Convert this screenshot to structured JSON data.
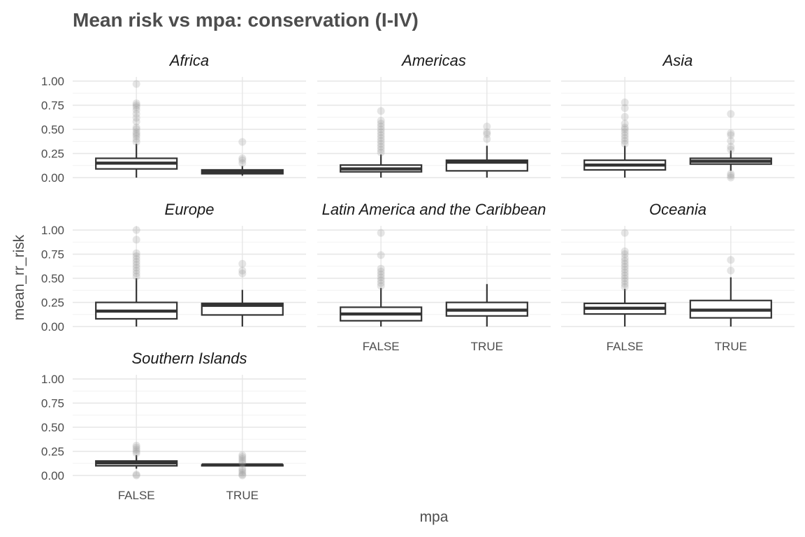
{
  "chart_data": {
    "type": "boxplot",
    "title": "Mean risk vs mpa: conservation (I-IV)",
    "xlabel": "mpa",
    "ylabel": "mean_rr_risk",
    "categories": [
      "FALSE",
      "TRUE"
    ],
    "ylim": [
      0,
      1.05
    ],
    "yticks": [
      "0.00",
      "0.25",
      "0.50",
      "0.75",
      "1.00"
    ],
    "grid": true,
    "legend": "none",
    "facets": [
      {
        "name": "Africa",
        "boxes": [
          {
            "category": "FALSE",
            "whisker_low": 0.0,
            "q1": 0.09,
            "median": 0.15,
            "q3": 0.2,
            "whisker_high": 0.35,
            "outliers": [
              0.37,
              0.4,
              0.43,
              0.45,
              0.47,
              0.5,
              0.52,
              0.58,
              0.62,
              0.66,
              0.7,
              0.73,
              0.75,
              0.77,
              0.97
            ]
          },
          {
            "category": "TRUE",
            "whisker_low": 0.02,
            "q1": 0.04,
            "median": 0.06,
            "q3": 0.08,
            "whisker_high": 0.12,
            "outliers": [
              0.15,
              0.18,
              0.2,
              0.37
            ]
          }
        ]
      },
      {
        "name": "Americas",
        "boxes": [
          {
            "category": "FALSE",
            "whisker_low": 0.0,
            "q1": 0.06,
            "median": 0.09,
            "q3": 0.13,
            "whisker_high": 0.24,
            "outliers": [
              0.26,
              0.29,
              0.32,
              0.35,
              0.38,
              0.41,
              0.44,
              0.47,
              0.5,
              0.53,
              0.56,
              0.59,
              0.69
            ]
          },
          {
            "category": "TRUE",
            "whisker_low": 0.0,
            "q1": 0.07,
            "median": 0.16,
            "q3": 0.18,
            "whisker_high": 0.33,
            "outliers": [
              0.4,
              0.45,
              0.47,
              0.53
            ]
          }
        ]
      },
      {
        "name": "Asia",
        "boxes": [
          {
            "category": "FALSE",
            "whisker_low": 0.0,
            "q1": 0.08,
            "median": 0.13,
            "q3": 0.18,
            "whisker_high": 0.33,
            "outliers": [
              0.35,
              0.38,
              0.41,
              0.44,
              0.47,
              0.5,
              0.52,
              0.56,
              0.63,
              0.72,
              0.78
            ]
          },
          {
            "category": "TRUE",
            "whisker_low": 0.07,
            "q1": 0.14,
            "median": 0.17,
            "q3": 0.2,
            "whisker_high": 0.28,
            "outliers": [
              0.0,
              0.02,
              0.04,
              0.29,
              0.32,
              0.38,
              0.44,
              0.46,
              0.66
            ]
          }
        ]
      },
      {
        "name": "Europe",
        "boxes": [
          {
            "category": "FALSE",
            "whisker_low": 0.0,
            "q1": 0.08,
            "median": 0.16,
            "q3": 0.25,
            "whisker_high": 0.5,
            "outliers": [
              0.52,
              0.55,
              0.58,
              0.61,
              0.64,
              0.67,
              0.7,
              0.73,
              0.76,
              0.9,
              1.0
            ]
          },
          {
            "category": "TRUE",
            "whisker_low": 0.0,
            "q1": 0.12,
            "median": 0.22,
            "q3": 0.24,
            "whisker_high": 0.38,
            "outliers": [
              0.55,
              0.58,
              0.65
            ]
          }
        ]
      },
      {
        "name": "Latin America and the Caribbean",
        "boxes": [
          {
            "category": "FALSE",
            "whisker_low": 0.0,
            "q1": 0.06,
            "median": 0.13,
            "q3": 0.2,
            "whisker_high": 0.4,
            "outliers": [
              0.42,
              0.45,
              0.48,
              0.51,
              0.54,
              0.57,
              0.6,
              0.74,
              0.97
            ]
          },
          {
            "category": "TRUE",
            "whisker_low": 0.0,
            "q1": 0.11,
            "median": 0.17,
            "q3": 0.25,
            "whisker_high": 0.44,
            "outliers": []
          }
        ]
      },
      {
        "name": "Oceania",
        "boxes": [
          {
            "category": "FALSE",
            "whisker_low": 0.0,
            "q1": 0.13,
            "median": 0.19,
            "q3": 0.24,
            "whisker_high": 0.39,
            "outliers": [
              0.41,
              0.44,
              0.47,
              0.5,
              0.53,
              0.56,
              0.59,
              0.62,
              0.65,
              0.68,
              0.71,
              0.75,
              0.78,
              0.97
            ]
          },
          {
            "category": "TRUE",
            "whisker_low": 0.0,
            "q1": 0.09,
            "median": 0.17,
            "q3": 0.27,
            "whisker_high": 0.51,
            "outliers": [
              0.58,
              0.69
            ]
          }
        ]
      },
      {
        "name": "Southern Islands",
        "boxes": [
          {
            "category": "FALSE",
            "whisker_low": 0.07,
            "q1": 0.1,
            "median": 0.13,
            "q3": 0.15,
            "whisker_high": 0.21,
            "outliers": [
              0.0,
              0.01,
              0.23,
              0.25,
              0.27,
              0.29,
              0.31
            ]
          },
          {
            "category": "TRUE",
            "whisker_low": 0.1,
            "q1": 0.1,
            "median": 0.11,
            "q3": 0.11,
            "whisker_high": 0.12,
            "outliers": [
              0.0,
              0.01,
              0.03,
              0.05,
              0.07,
              0.13,
              0.15,
              0.17,
              0.19,
              0.21
            ]
          }
        ]
      }
    ]
  }
}
